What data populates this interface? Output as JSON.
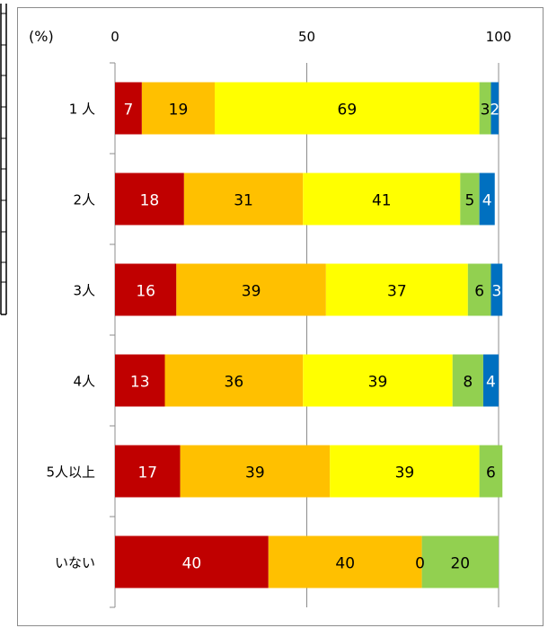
{
  "chart_data": {
    "type": "bar",
    "orientation": "horizontal",
    "stacked": true,
    "unit_label": "(%)",
    "xlim": [
      0,
      100
    ],
    "x_ticks": [
      0,
      50,
      100
    ],
    "x_tick_labels": [
      "0",
      "50",
      "100"
    ],
    "grid": true,
    "legend": "none",
    "categories": [
      "1 人",
      "2人",
      "3人",
      "4人",
      "5人以上",
      "いない"
    ],
    "series": [
      {
        "color": "#c00000",
        "label_color": "#ffffff",
        "values": [
          7,
          18,
          16,
          13,
          17,
          40
        ]
      },
      {
        "color": "#ffc000",
        "label_color": "#000000",
        "values": [
          19,
          31,
          39,
          36,
          39,
          40
        ]
      },
      {
        "color": "#ffff00",
        "label_color": "#000000",
        "values": [
          69,
          41,
          37,
          39,
          39,
          0
        ]
      },
      {
        "color": "#92d050",
        "label_color": "#000000",
        "values": [
          3,
          5,
          6,
          8,
          6,
          20
        ]
      },
      {
        "color": "#0070c0",
        "label_color": "#ffffff",
        "values": [
          2,
          4,
          3,
          4,
          0,
          0
        ]
      }
    ]
  }
}
